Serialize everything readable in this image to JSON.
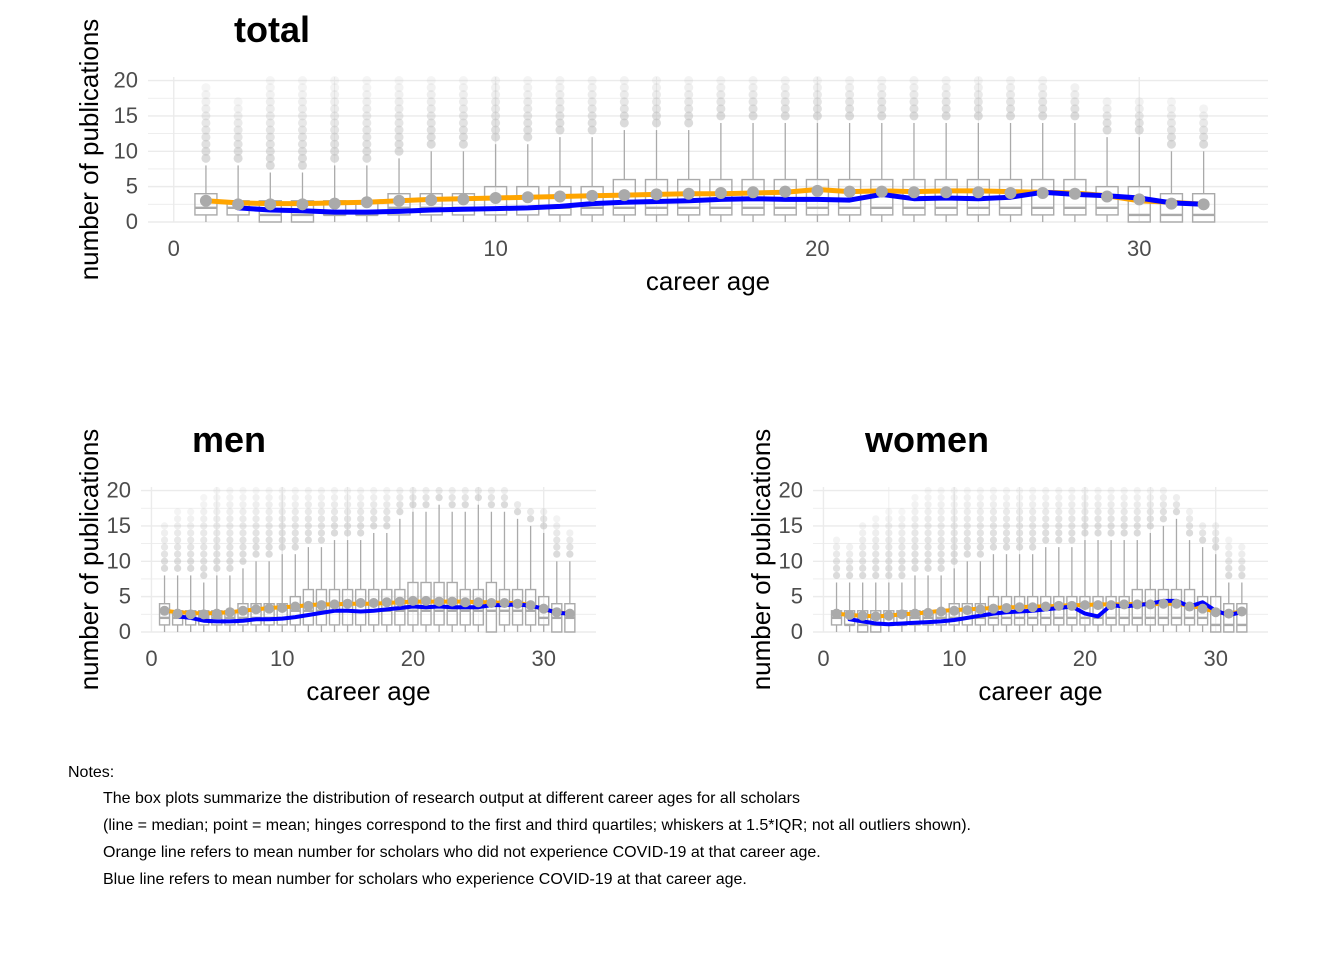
{
  "notes": {
    "heading": "Notes:",
    "lines": [
      "The box plots summarize the distribution of research output at different career ages for all scholars",
      "(line = median; point = mean; hinges correspond to the first and third quartiles; whiskers at 1.5*IQR; not all outliers shown).",
      "Orange line refers to mean number for scholars who did not experience COVID-19 at that career age.",
      "Blue line refers to mean number for scholars who experience COVID-19 at that career age."
    ]
  },
  "colors": {
    "no_covid_line": "#FFA500",
    "covid_line": "#0000FF",
    "box": "#AAAAAA",
    "mean_point": "#AAAAAA",
    "grid": "#EBEBEB",
    "axis_text": "#4D4D4D"
  },
  "chart_data": [
    {
      "id": "total",
      "type": "box",
      "title": "total",
      "xlabel": "career age",
      "ylabel": "number of publications",
      "xlim": [
        -0.8,
        34
      ],
      "ylim": [
        0,
        20.5
      ],
      "xticks": [
        0,
        10,
        20,
        30
      ],
      "yticks": [
        0,
        5,
        10,
        15,
        20
      ],
      "x": [
        1,
        2,
        3,
        4,
        5,
        6,
        7,
        8,
        9,
        10,
        11,
        12,
        13,
        14,
        15,
        16,
        17,
        18,
        19,
        20,
        21,
        22,
        23,
        24,
        25,
        26,
        27,
        28,
        29,
        30,
        31,
        32
      ],
      "box_q1": [
        1,
        1,
        0,
        0,
        1,
        1,
        1,
        1,
        1,
        1,
        1,
        1,
        1,
        1,
        1,
        1,
        1,
        1,
        1,
        1,
        1,
        1,
        1,
        1,
        1,
        1,
        1,
        1,
        1,
        0,
        0,
        0
      ],
      "box_median": [
        2,
        2,
        1,
        1,
        1,
        1,
        2,
        2,
        2,
        2,
        2,
        2,
        2,
        2,
        2,
        2,
        2,
        2,
        2,
        2,
        2,
        2,
        2,
        2,
        2,
        2,
        2,
        2,
        2,
        1,
        1,
        1
      ],
      "box_q3": [
        4,
        3,
        3,
        3,
        3,
        3,
        4,
        4,
        4,
        5,
        5,
        5,
        5,
        6,
        6,
        6,
        6,
        6,
        6,
        6,
        6,
        6,
        6,
        6,
        6,
        6,
        6,
        6,
        5,
        5,
        4,
        4
      ],
      "whisker_high": [
        8,
        8,
        7,
        7,
        8,
        8,
        9,
        10,
        10,
        11,
        11,
        12,
        12,
        13,
        13,
        13,
        14,
        14,
        14,
        14,
        14,
        14,
        14,
        14,
        14,
        14,
        14,
        14,
        12,
        12,
        10,
        10
      ],
      "mean": [
        3.0,
        2.5,
        2.5,
        2.5,
        2.6,
        2.8,
        3.0,
        3.1,
        3.2,
        3.4,
        3.5,
        3.6,
        3.7,
        3.8,
        3.9,
        4.0,
        4.1,
        4.2,
        4.3,
        4.4,
        4.3,
        4.3,
        4.2,
        4.2,
        4.2,
        4.1,
        4.1,
        4.0,
        3.6,
        3.2,
        2.6,
        2.5
      ],
      "outlier_top": [
        19,
        17,
        20,
        20,
        20,
        20,
        20,
        20,
        20,
        20,
        20,
        20,
        20,
        20,
        20,
        20,
        20,
        20,
        20,
        20,
        20,
        20,
        20,
        20,
        20,
        20,
        20,
        19,
        17,
        17,
        17,
        16
      ],
      "series": [
        {
          "name": "no COVID-19",
          "color": "orange",
          "x": [
            1,
            2,
            3,
            4,
            5,
            6,
            7,
            8,
            9,
            10,
            11,
            12,
            13,
            14,
            15,
            16,
            17,
            18,
            19,
            20,
            21,
            22,
            23,
            24,
            25,
            26,
            27,
            28,
            29,
            30,
            31,
            32
          ],
          "values": [
            3.0,
            2.7,
            2.6,
            2.6,
            2.7,
            2.8,
            3.0,
            3.2,
            3.3,
            3.4,
            3.5,
            3.6,
            3.7,
            3.8,
            3.9,
            4.0,
            4.0,
            4.1,
            4.2,
            4.6,
            4.3,
            4.4,
            4.3,
            4.4,
            4.4,
            4.3,
            4.2,
            4.1,
            3.7,
            3.0,
            2.8,
            2.5
          ]
        },
        {
          "name": "COVID-19",
          "color": "blue",
          "x": [
            2,
            3,
            4,
            5,
            6,
            7,
            8,
            9,
            10,
            11,
            12,
            13,
            14,
            15,
            16,
            17,
            18,
            19,
            20,
            21,
            22,
            23,
            24,
            25,
            26,
            27,
            28,
            29,
            30,
            31,
            32
          ],
          "values": [
            2.0,
            1.7,
            1.6,
            1.4,
            1.4,
            1.5,
            1.7,
            1.8,
            1.9,
            2.0,
            2.2,
            2.6,
            2.8,
            2.9,
            3.0,
            3.2,
            3.3,
            3.2,
            3.2,
            3.1,
            3.9,
            3.3,
            3.4,
            3.3,
            3.5,
            4.2,
            3.9,
            3.7,
            3.4,
            2.7,
            2.5
          ]
        }
      ]
    },
    {
      "id": "men",
      "type": "box",
      "title": "men",
      "xlabel": "career age",
      "ylabel": "number of publications",
      "xlim": [
        -0.8,
        34
      ],
      "ylim": [
        0,
        20.5
      ],
      "xticks": [
        0,
        10,
        20,
        30
      ],
      "yticks": [
        0,
        5,
        10,
        15,
        20
      ],
      "x": [
        1,
        2,
        3,
        4,
        5,
        6,
        7,
        8,
        9,
        10,
        11,
        12,
        13,
        14,
        15,
        16,
        17,
        18,
        19,
        20,
        21,
        22,
        23,
        24,
        25,
        26,
        27,
        28,
        29,
        30,
        31,
        32
      ],
      "box_q1": [
        1,
        1,
        1,
        1,
        1,
        1,
        1,
        1,
        1,
        1,
        1,
        1,
        1,
        1,
        1,
        1,
        1,
        1,
        1,
        1,
        1,
        1,
        1,
        1,
        1,
        0,
        1,
        1,
        1,
        1,
        0,
        0
      ],
      "box_median": [
        2,
        2,
        2,
        2,
        2,
        2,
        2,
        2,
        2,
        2,
        3,
        3,
        3,
        3,
        3,
        3,
        3,
        3,
        3,
        3,
        3,
        3,
        3,
        3,
        3,
        3,
        3,
        3,
        3,
        2,
        2,
        2
      ],
      "box_q3": [
        4,
        3,
        3,
        3,
        3,
        3,
        4,
        4,
        4,
        4,
        5,
        6,
        6,
        6,
        6,
        6,
        6,
        6,
        6,
        7,
        7,
        7,
        7,
        6,
        6,
        7,
        6,
        6,
        6,
        5,
        4,
        4
      ],
      "whisker_high": [
        8,
        8,
        8,
        7,
        8,
        8,
        9,
        10,
        10,
        11,
        11,
        12,
        12,
        13,
        13,
        13,
        14,
        14,
        16,
        17,
        17,
        18,
        17,
        17,
        18,
        17,
        17,
        16,
        15,
        14,
        10,
        10
      ],
      "mean": [
        3.0,
        2.6,
        2.5,
        2.5,
        2.6,
        2.8,
        3.0,
        3.2,
        3.3,
        3.4,
        3.6,
        3.7,
        3.8,
        3.9,
        4.0,
        4.1,
        4.1,
        4.2,
        4.3,
        4.4,
        4.4,
        4.3,
        4.3,
        4.2,
        4.2,
        4.1,
        4.1,
        4.0,
        3.8,
        3.3,
        2.8,
        2.6
      ],
      "outlier_top": [
        15,
        17,
        17,
        19,
        20,
        20,
        20,
        20,
        20,
        20,
        20,
        20,
        20,
        20,
        20,
        20,
        20,
        20,
        20,
        20,
        20,
        20,
        20,
        20,
        20,
        20,
        20,
        18,
        17,
        17,
        16,
        14
      ],
      "series": [
        {
          "name": "no COVID-19",
          "color": "orange",
          "x": [
            1,
            2,
            3,
            4,
            5,
            6,
            7,
            8,
            9,
            10,
            11,
            12,
            13,
            14,
            15,
            16,
            17,
            18,
            19,
            20,
            21,
            22,
            23,
            24,
            25,
            26,
            27,
            28,
            29,
            30,
            31,
            32
          ],
          "values": [
            3.0,
            2.8,
            2.7,
            2.6,
            2.7,
            2.8,
            3.0,
            3.2,
            3.4,
            3.5,
            3.6,
            3.8,
            3.9,
            3.9,
            4.0,
            4.0,
            4.0,
            4.1,
            4.2,
            4.3,
            4.3,
            4.3,
            4.3,
            4.3,
            4.2,
            4.2,
            4.1,
            4.1,
            3.8,
            3.2,
            2.8,
            2.6
          ]
        },
        {
          "name": "COVID-19",
          "color": "blue",
          "x": [
            2,
            3,
            4,
            5,
            6,
            7,
            8,
            9,
            10,
            11,
            12,
            13,
            14,
            15,
            16,
            17,
            18,
            19,
            20,
            21,
            22,
            23,
            24,
            25,
            26,
            27,
            28,
            29,
            30,
            31,
            32
          ],
          "values": [
            2.2,
            2.0,
            1.6,
            1.5,
            1.5,
            1.6,
            1.8,
            1.8,
            1.9,
            2.1,
            2.4,
            2.7,
            3.0,
            3.0,
            2.9,
            3.0,
            3.2,
            3.4,
            3.6,
            3.5,
            3.6,
            3.5,
            3.5,
            3.5,
            3.8,
            3.8,
            3.9,
            3.7,
            3.3,
            2.7,
            2.6
          ]
        }
      ]
    },
    {
      "id": "women",
      "type": "box",
      "title": "women",
      "xlabel": "career age",
      "ylabel": "number of publications",
      "xlim": [
        -0.8,
        34
      ],
      "ylim": [
        0,
        20.5
      ],
      "xticks": [
        0,
        10,
        20,
        30
      ],
      "yticks": [
        0,
        5,
        10,
        15,
        20
      ],
      "x": [
        1,
        2,
        3,
        4,
        5,
        6,
        7,
        8,
        9,
        10,
        11,
        12,
        13,
        14,
        15,
        16,
        17,
        18,
        19,
        20,
        21,
        22,
        23,
        24,
        25,
        26,
        27,
        28,
        29,
        30,
        31,
        32
      ],
      "box_q1": [
        1,
        1,
        0,
        0,
        1,
        1,
        1,
        1,
        1,
        1,
        1,
        1,
        1,
        1,
        1,
        1,
        1,
        1,
        1,
        1,
        1,
        1,
        1,
        1,
        1,
        1,
        1,
        1,
        1,
        0,
        0,
        0
      ],
      "box_median": [
        2,
        1,
        1,
        1,
        1,
        1,
        2,
        2,
        2,
        2,
        2,
        2,
        2,
        2,
        2,
        2,
        2,
        2,
        2,
        2,
        2,
        2,
        2,
        2,
        2,
        2,
        2,
        2,
        2,
        1,
        1,
        1
      ],
      "box_q3": [
        3,
        3,
        3,
        3,
        3,
        3,
        3,
        3,
        3,
        4,
        4,
        4,
        5,
        5,
        5,
        5,
        5,
        5,
        5,
        5,
        5,
        5,
        5,
        6,
        6,
        6,
        6,
        6,
        5,
        5,
        4,
        4
      ],
      "whisker_high": [
        7,
        7,
        7,
        7,
        7,
        7,
        8,
        8,
        8,
        9,
        10,
        10,
        11,
        11,
        11,
        11,
        12,
        12,
        12,
        13,
        13,
        13,
        13,
        13,
        14,
        15,
        16,
        13,
        12,
        11,
        7,
        7
      ],
      "mean": [
        2.6,
        2.4,
        2.3,
        2.2,
        2.3,
        2.5,
        2.6,
        2.7,
        2.9,
        3.0,
        3.1,
        3.2,
        3.3,
        3.4,
        3.5,
        3.5,
        3.6,
        3.7,
        3.7,
        3.8,
        3.8,
        3.8,
        3.9,
        3.9,
        3.9,
        4.0,
        4.0,
        3.6,
        3.3,
        2.8,
        2.6,
        2.9
      ],
      "outlier_top": [
        13,
        12,
        15,
        16,
        17,
        17,
        19,
        20,
        20,
        20,
        20,
        20,
        20,
        20,
        20,
        20,
        20,
        20,
        20,
        20,
        20,
        20,
        20,
        20,
        20,
        20,
        19,
        17,
        15,
        15,
        13,
        12
      ],
      "series": [
        {
          "name": "no COVID-19",
          "color": "orange",
          "x": [
            1,
            2,
            3,
            4,
            5,
            6,
            7,
            8,
            9,
            10,
            11,
            12,
            13,
            14,
            15,
            16,
            17,
            18,
            19,
            20,
            21,
            22,
            23,
            24,
            25,
            26,
            27,
            28,
            29,
            30,
            31,
            32
          ],
          "values": [
            2.6,
            2.4,
            2.3,
            2.2,
            2.3,
            2.5,
            2.6,
            2.8,
            3.0,
            3.1,
            3.2,
            3.3,
            3.4,
            3.5,
            3.5,
            3.6,
            3.6,
            3.7,
            3.8,
            3.8,
            3.9,
            3.9,
            3.9,
            4.0,
            3.9,
            4.0,
            4.0,
            3.7,
            3.4,
            2.8,
            2.6,
            2.9
          ]
        },
        {
          "name": "COVID-19",
          "color": "blue",
          "x": [
            2,
            3,
            4,
            5,
            6,
            7,
            8,
            9,
            10,
            11,
            12,
            13,
            14,
            15,
            16,
            17,
            18,
            19,
            20,
            21,
            22,
            23,
            24,
            25,
            26,
            27,
            28,
            29,
            30,
            31,
            32
          ],
          "values": [
            1.8,
            1.5,
            1.2,
            1.1,
            1.2,
            1.3,
            1.4,
            1.5,
            1.7,
            2.0,
            2.3,
            2.6,
            2.8,
            2.9,
            3.0,
            3.2,
            3.4,
            3.6,
            2.6,
            2.2,
            3.8,
            3.6,
            3.8,
            4.0,
            4.4,
            4.4,
            3.6,
            4.2,
            3.0,
            2.4,
            2.8
          ]
        }
      ]
    }
  ]
}
